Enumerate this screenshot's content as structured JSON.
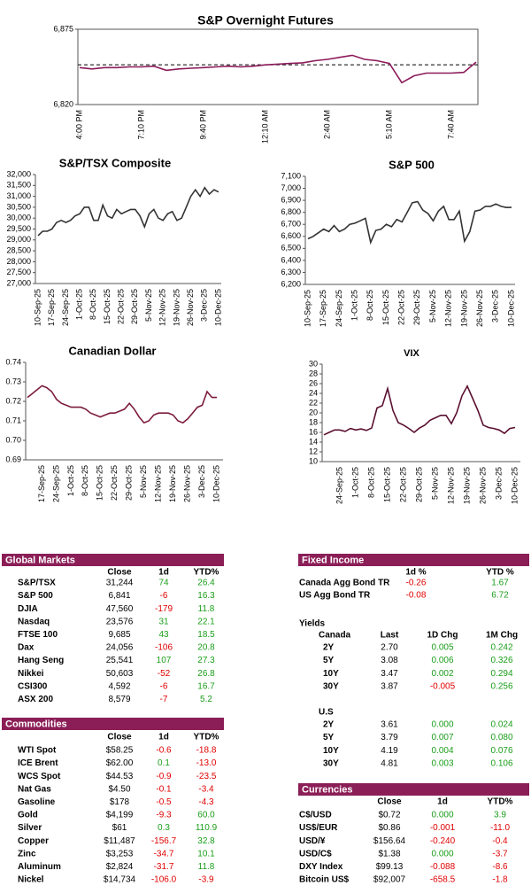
{
  "chart_data": [
    {
      "type": "line",
      "title": "S&P Overnight Futures",
      "color": "#8b1a5a",
      "reference_value": 6849,
      "categories": [
        "4:00 PM",
        null,
        null,
        null,
        null,
        "7:10 PM",
        null,
        null,
        null,
        null,
        "9:40 PM",
        null,
        null,
        null,
        null,
        "12:10 AM",
        null,
        null,
        null,
        null,
        "2:40 AM",
        null,
        null,
        null,
        null,
        "5:10 AM",
        null,
        null,
        null,
        null,
        "7:40 AM",
        null,
        null
      ],
      "values": [
        6847,
        6846,
        6847,
        6847,
        6847.5,
        6847.5,
        6848,
        6845,
        6846,
        6846.5,
        6847,
        6847.5,
        6848,
        6847.5,
        6848,
        6849,
        6849.5,
        6850,
        6850.5,
        6852,
        6853,
        6854.5,
        6856,
        6853,
        6852,
        6850,
        6836,
        6841,
        6843,
        6843,
        6843,
        6843.5,
        6851
      ],
      "ylim": [
        6820,
        6875
      ],
      "yticks": [
        {
          "value": 6820,
          "label": "6,820"
        },
        {
          "value": 6875,
          "label": "6,875"
        }
      ]
    },
    {
      "type": "line",
      "title": "S&P/TSX Composite",
      "color": "#333333",
      "categories": [
        "10-Sep-25",
        null,
        null,
        "17-Sep-25",
        null,
        null,
        "24-Sep-25",
        null,
        null,
        "1-Oct-25",
        null,
        null,
        "8-Oct-25",
        null,
        null,
        "15-Oct-25",
        null,
        null,
        "22-Oct-25",
        null,
        null,
        "29-Oct-25",
        null,
        null,
        "5-Nov-25",
        null,
        null,
        "12-Nov-25",
        null,
        null,
        "19-Nov-25",
        null,
        null,
        "26-Nov-25",
        null,
        null,
        "3-Dec-25",
        null,
        null,
        "10-Dec-25"
      ],
      "values": [
        29200,
        29400,
        29400,
        29500,
        29800,
        29900,
        29800,
        29900,
        30100,
        30200,
        30500,
        30500,
        29900,
        29900,
        30600,
        30100,
        30000,
        30400,
        30200,
        30300,
        30400,
        30400,
        30100,
        29600,
        30200,
        30400,
        30000,
        29900,
        30200,
        30300,
        29900,
        30000,
        30500,
        31000,
        31300,
        31000,
        31400,
        31100,
        31300,
        31200
      ],
      "ylim": [
        27000,
        32000
      ],
      "yticks": [
        {
          "value": 27000,
          "label": "27,000"
        },
        {
          "value": 27500,
          "label": "27,500"
        },
        {
          "value": 28000,
          "label": "28,000"
        },
        {
          "value": 28500,
          "label": "28,500"
        },
        {
          "value": 29000,
          "label": "29,000"
        },
        {
          "value": 29500,
          "label": "29,500"
        },
        {
          "value": 30000,
          "label": "30,000"
        },
        {
          "value": 30500,
          "label": "30,500"
        },
        {
          "value": 31000,
          "label": "31,000"
        },
        {
          "value": 31500,
          "label": "31,500"
        },
        {
          "value": 32000,
          "label": "32,000"
        }
      ]
    },
    {
      "type": "line",
      "title": "S&P 500",
      "color": "#333333",
      "categories": [
        "10-Sep-25",
        null,
        null,
        "17-Sep-25",
        null,
        null,
        "24-Sep-25",
        null,
        null,
        "1-Oct-25",
        null,
        null,
        "8-Oct-25",
        null,
        null,
        "15-Oct-25",
        null,
        null,
        "22-Oct-25",
        null,
        null,
        "29-Oct-25",
        null,
        null,
        "5-Nov-25",
        null,
        null,
        "12-Nov-25",
        null,
        null,
        "19-Nov-25",
        null,
        null,
        "26-Nov-25",
        null,
        null,
        "3-Dec-25",
        null,
        null,
        "10-Dec-25"
      ],
      "values": [
        6580,
        6600,
        6630,
        6660,
        6640,
        6690,
        6640,
        6660,
        6700,
        6710,
        6730,
        6750,
        6550,
        6650,
        6660,
        6700,
        6680,
        6740,
        6720,
        6800,
        6880,
        6890,
        6820,
        6790,
        6730,
        6810,
        6850,
        6740,
        6740,
        6810,
        6560,
        6640,
        6810,
        6820,
        6850,
        6850,
        6870,
        6850,
        6840,
        6841
      ],
      "ylim": [
        6200,
        7100
      ],
      "yticks": [
        {
          "value": 6200,
          "label": "6,200"
        },
        {
          "value": 6300,
          "label": "6,300"
        },
        {
          "value": 6400,
          "label": "6,400"
        },
        {
          "value": 6500,
          "label": "6,500"
        },
        {
          "value": 6600,
          "label": "6,600"
        },
        {
          "value": 6700,
          "label": "6,700"
        },
        {
          "value": 6800,
          "label": "6,800"
        },
        {
          "value": 6900,
          "label": "6,900"
        },
        {
          "value": 7000,
          "label": "7,000"
        },
        {
          "value": 7100,
          "label": "7,100"
        }
      ]
    },
    {
      "type": "line",
      "title": "Canadian Dollar",
      "color": "#7b1c3c",
      "categories": [
        null,
        null,
        null,
        "17-Sep-25",
        null,
        null,
        "24-Sep-25",
        null,
        null,
        "1-Oct-25",
        null,
        null,
        "8-Oct-25",
        null,
        null,
        "15-Oct-25",
        null,
        null,
        "22-Oct-25",
        null,
        null,
        "29-Oct-25",
        null,
        null,
        "5-Nov-25",
        null,
        null,
        "12-Nov-25",
        null,
        null,
        "19-Nov-25",
        null,
        null,
        "26-Nov-25",
        null,
        null,
        "3-Dec-25",
        null,
        null,
        "10-Dec-25"
      ],
      "values": [
        0.722,
        0.724,
        0.726,
        0.728,
        0.727,
        0.725,
        0.721,
        0.719,
        0.718,
        0.717,
        0.717,
        0.717,
        0.716,
        0.714,
        0.713,
        0.712,
        0.713,
        0.714,
        0.714,
        0.715,
        0.716,
        0.719,
        0.716,
        0.712,
        0.709,
        0.71,
        0.713,
        0.714,
        0.714,
        0.714,
        0.713,
        0.71,
        0.709,
        0.711,
        0.714,
        0.717,
        0.718,
        0.725,
        0.722,
        0.722
      ],
      "ylim": [
        0.69,
        0.74
      ],
      "yticks": [
        0.69,
        {
          "value": 0.7,
          "label": "0.70"
        },
        0.71,
        0.72,
        0.73,
        0.74
      ]
    },
    {
      "type": "line",
      "title": "VIX",
      "color": "#5a1030",
      "categories": [
        null,
        null,
        null,
        "24-Sep-25",
        null,
        null,
        "1-Oct-25",
        null,
        null,
        "8-Oct-25",
        null,
        null,
        "15-Oct-25",
        null,
        null,
        "22-Oct-25",
        null,
        null,
        "29-Oct-25",
        null,
        null,
        "5-Nov-25",
        null,
        null,
        "12-Nov-25",
        null,
        null,
        "19-Nov-25",
        null,
        null,
        "26-Nov-25",
        null,
        null,
        "3-Dec-25",
        null,
        null,
        "10-Dec-25"
      ],
      "values": [
        15.5,
        16.0,
        16.5,
        16.5,
        16.2,
        16.8,
        16.5,
        16.7,
        16.4,
        16.9,
        21.0,
        21.5,
        25.0,
        20.5,
        18.0,
        17.5,
        16.8,
        16.0,
        16.9,
        17.5,
        18.5,
        19.0,
        19.5,
        19.5,
        17.8,
        20.0,
        23.5,
        25.5,
        23.0,
        20.5,
        17.5,
        17.0,
        16.8,
        16.5,
        15.8,
        16.8,
        17.0
      ],
      "ylim": [
        10,
        30
      ],
      "yticks": [
        10,
        12,
        14,
        16,
        18,
        20,
        22,
        24,
        26,
        28,
        30
      ]
    }
  ],
  "tables": {
    "global_markets": {
      "title": "Global Markets",
      "columns": [
        "Close",
        "1d",
        "YTD%"
      ],
      "signed_from": 2,
      "rows": [
        [
          "S&P/TSX",
          "31,244",
          "74",
          "26.4"
        ],
        [
          "S&P 500",
          "6,841",
          "-6",
          "16.3"
        ],
        [
          "DJIA",
          "47,560",
          "-179",
          "11.8"
        ],
        [
          "Nasdaq",
          "23,576",
          "31",
          "22.1"
        ],
        [
          "FTSE 100",
          "9,685",
          "43",
          "18.5"
        ],
        [
          "Dax",
          "24,056",
          "-106",
          "20.8"
        ],
        [
          "Hang Seng",
          "25,541",
          "107",
          "27.3"
        ],
        [
          "Nikkei",
          "50,603",
          "-52",
          "26.8"
        ],
        [
          "CSI300",
          "4,592",
          "-6",
          "16.7"
        ],
        [
          "ASX 200",
          "8,579",
          "-7",
          "5.2"
        ]
      ]
    },
    "commodities": {
      "title": "Commodities",
      "columns": [
        "Close",
        "1d",
        "YTD%"
      ],
      "signed_from": 2,
      "rows": [
        [
          "WTI Spot",
          "$58.25",
          "-0.6",
          "-18.8"
        ],
        [
          "ICE Brent",
          "$62.00",
          "0.1",
          "-13.0"
        ],
        [
          "WCS Spot",
          "$44.53",
          "-0.9",
          "-23.5"
        ],
        [
          "Nat Gas",
          "$4.50",
          "-0.1",
          "-3.4"
        ],
        [
          "Gasoline",
          "$178",
          "-0.5",
          "-4.3"
        ],
        [
          "Gold",
          "$4,199",
          "-9.3",
          "60.0"
        ],
        [
          "Silver",
          "$61",
          "0.3",
          "110.9"
        ],
        [
          "Copper",
          "$11,487",
          "-156.7",
          "32.8"
        ],
        [
          "Zinc",
          "$3,253",
          "-34.7",
          "10.1"
        ],
        [
          "Aluminum",
          "$2,824",
          "-31.7",
          "11.8"
        ],
        [
          "Nickel",
          "$14,734",
          "-106.0",
          "-3.9"
        ]
      ]
    },
    "fixed_income": {
      "title": "Fixed Income",
      "columns": [
        "1d %",
        "YTD %"
      ],
      "signed_from": 1,
      "rows": [
        [
          "Canada Agg Bond TR",
          "-0.26",
          "1.67"
        ],
        [
          "US Agg Bond TR",
          "-0.08",
          "6.72"
        ]
      ]
    },
    "yields_title": "Yields",
    "canada_yields": {
      "columns": [
        "Canada",
        "Last",
        "1D Chg",
        "1M Chg"
      ],
      "signed_from": 2,
      "rows": [
        [
          "2Y",
          "2.70",
          "0.005",
          "0.242"
        ],
        [
          "5Y",
          "3.08",
          "0.006",
          "0.326"
        ],
        [
          "10Y",
          "3.47",
          "0.002",
          "0.294"
        ],
        [
          "30Y",
          "3.87",
          "-0.005",
          "0.256"
        ]
      ]
    },
    "us_yields": {
      "columns": [
        "U.S"
      ],
      "signed_from": 2,
      "rows": [
        [
          "2Y",
          "3.61",
          "0.000",
          "0.024"
        ],
        [
          "5Y",
          "3.79",
          "0.007",
          "0.080"
        ],
        [
          "10Y",
          "4.19",
          "0.004",
          "0.076"
        ],
        [
          "30Y",
          "4.81",
          "0.003",
          "0.106"
        ]
      ]
    },
    "currencies": {
      "title": "Currencies",
      "columns": [
        "Close",
        "1d",
        "YTD%"
      ],
      "signed_from": 2,
      "rows": [
        [
          "C$/USD",
          "$0.72",
          "0.000",
          "3.9"
        ],
        [
          "US$/EUR",
          "$0.86",
          "-0.001",
          "-11.0"
        ],
        [
          "USD/¥",
          "$156.64",
          "-0.240",
          "-0.4"
        ],
        [
          "USD/C$",
          "$1.38",
          "0.000",
          "-3.7"
        ],
        [
          "DXY Index",
          "$99.13",
          "-0.088",
          "-8.6"
        ],
        [
          "Bitcoin US$",
          "$92,007",
          "-658.5",
          "-1.8"
        ]
      ]
    }
  }
}
